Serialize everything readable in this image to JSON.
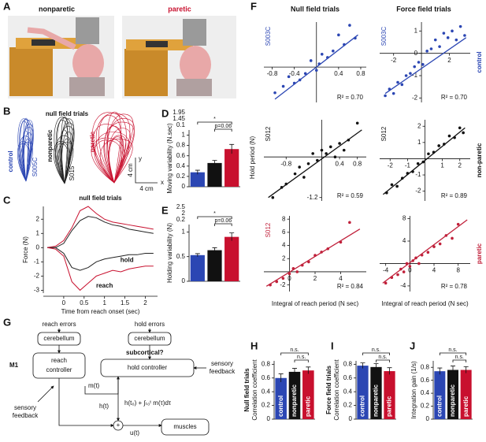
{
  "panel_labels": [
    "A",
    "B",
    "C",
    "D",
    "E",
    "F",
    "G",
    "H",
    "I",
    "J"
  ],
  "photos": {
    "left": "nonparetic",
    "right": "paretic"
  },
  "traces": {
    "title": "null field trials",
    "control": "control",
    "control_subject": "S005C",
    "nonparetic": "nonparetic",
    "nonparetic_subject": "S015",
    "paretic": "paretic",
    "scale_y": "4 cm",
    "scale_x": "4 cm",
    "y": "y",
    "x": "x"
  },
  "diagram": {
    "reach_errors": "reach errors",
    "hold_errors": "hold errors",
    "cerebellum_left": "cerebellum",
    "cerebellum_right": "cerebellum",
    "m1": "M1",
    "reach_controller": [
      "reach",
      "controller"
    ],
    "subcortical": "subcortical?",
    "hold_controller": "hold controller",
    "feedback_right": [
      "sensory",
      "feedback"
    ],
    "feedback_left": [
      "sensory",
      "feedback"
    ],
    "m": "m(t)",
    "h": "h(t)",
    "formula": "h(t₀) + ∫ₜ₀ᵗ m(τ)dτ",
    "sum": "+",
    "u": "u(t)",
    "muscles": "muscles"
  },
  "f_titles": [
    "Null field trials",
    "Force field trials"
  ],
  "f_ylabel": "Hold period (N)",
  "chart_data": [
    {
      "type": "line",
      "title": "null field trials",
      "ylabel": "Force (N)",
      "xlabel": "Time from reach onset (sec)",
      "annotations": [
        "reach",
        "hold"
      ],
      "x": [
        -0.4,
        -0.2,
        0,
        0.2,
        0.4,
        0.6,
        0.8,
        1,
        1.2,
        1.4,
        1.6,
        1.8,
        2,
        2.2
      ],
      "series": [
        {
          "color": "#222222",
          "values": [
            0,
            0,
            0.3,
            1.2,
            1.9,
            2.2,
            2.1,
            1.8,
            1.6,
            1.5,
            1.3,
            1.2,
            1.1,
            1.0
          ]
        },
        {
          "color": "#c8102e",
          "values": [
            0,
            0.1,
            0.5,
            1.4,
            2.6,
            2.9,
            2.4,
            2.0,
            1.8,
            1.7,
            1.6,
            1.5,
            1.4,
            1.3
          ]
        },
        {
          "color": "#222222",
          "values": [
            0,
            0,
            -0.4,
            -1.4,
            -1.6,
            -1.4,
            -1.0,
            -0.8,
            -0.7,
            -0.6,
            -0.5,
            -0.5,
            -0.4,
            -0.4
          ]
        },
        {
          "color": "#c8102e",
          "values": [
            0,
            -0.1,
            -0.6,
            -2.4,
            -3.0,
            -2.5,
            -2.0,
            -1.8,
            -1.6,
            -1.7,
            -1.5,
            -1.4,
            -1.3,
            -1.3
          ]
        }
      ],
      "xlim": [
        -0.5,
        2.3
      ],
      "ylim": [
        -3.2,
        2.9
      ],
      "xticks": [
        0,
        0.5,
        1,
        1.5,
        2
      ],
      "yticks": [
        2,
        1,
        0,
        -1,
        -2,
        -3
      ]
    },
    {
      "type": "bar",
      "ylabel": "Moving variability (N.sec)",
      "values": [
        0.28,
        0.46,
        0.73
      ],
      "errors": [
        0.04,
        0.05,
        0.09
      ],
      "colors": [
        "#2b46b3",
        "#111111",
        "#c8102e"
      ],
      "ylim": [
        0,
        1.1
      ],
      "yticks": [
        0,
        0.2,
        0.4,
        0.6,
        0.8,
        1
      ],
      "break_labels": [
        "1.95",
        "1.45",
        "0.1"
      ],
      "annotations": [
        "*",
        "p=0.06"
      ]
    },
    {
      "type": "bar",
      "ylabel": "Holding variability (N)",
      "values": [
        0.53,
        0.63,
        0.9
      ],
      "errors": [
        0.03,
        0.05,
        0.08
      ],
      "colors": [
        "#2b46b3",
        "#111111",
        "#c8102e"
      ],
      "ylim": [
        0,
        1.15
      ],
      "yticks": [
        0,
        0.5,
        1
      ],
      "break_labels": [
        "2.5",
        "2",
        "0.2"
      ],
      "annotations": [
        "*",
        "p=0.06"
      ]
    },
    {
      "type": "bar",
      "title": "Null field trials",
      "ylabel": "Correlation coefficient",
      "categories": [
        "control",
        "nonparetic",
        "paretic"
      ],
      "values": [
        0.6,
        0.69,
        0.71
      ],
      "errors": [
        0.06,
        0.05,
        0.05
      ],
      "colors": [
        "#2b46b3",
        "#111111",
        "#c8102e"
      ],
      "ylim": [
        0,
        0.85
      ],
      "yticks": [
        0,
        0.2,
        0.4,
        0.6,
        0.8
      ],
      "annotations": [
        "n.s.",
        "n.s."
      ]
    },
    {
      "type": "bar",
      "title": "Force field trials",
      "ylabel": "Correlation coefficient",
      "categories": [
        "control",
        "nonparetic",
        "paretic"
      ],
      "values": [
        0.78,
        0.76,
        0.7
      ],
      "errors": [
        0.04,
        0.05,
        0.05
      ],
      "colors": [
        "#2b46b3",
        "#111111",
        "#c8102e"
      ],
      "ylim": [
        0,
        0.85
      ],
      "yticks": [
        0,
        0.2,
        0.4,
        0.6,
        0.8
      ],
      "annotations": [
        "n.s.",
        "n.s."
      ]
    },
    {
      "type": "bar",
      "ylabel": "Integration gain (1/s)",
      "categories": [
        "control",
        "nonparetic",
        "paretic"
      ],
      "values": [
        0.74,
        0.76,
        0.76
      ],
      "errors": [
        0.05,
        0.06,
        0.05
      ],
      "colors": [
        "#2b46b3",
        "#111111",
        "#c8102e"
      ],
      "ylim": [
        0,
        0.9
      ],
      "yticks": [
        0,
        0.2,
        0.4,
        0.6,
        0.8
      ],
      "annotations": [
        "n.s.",
        "n.s."
      ]
    },
    {
      "type": "scatter",
      "label": "S003C",
      "color": "#2b46b3",
      "r2": "R² = 0.70",
      "x": [
        -0.75,
        -0.6,
        -0.5,
        -0.4,
        -0.3,
        -0.2,
        -0.1,
        0,
        0.05,
        0.1,
        0.2,
        0.3,
        0.4,
        0.5,
        0.6,
        0.7
      ],
      "y": [
        -0.8,
        -0.6,
        -0.3,
        -0.5,
        -0.4,
        -0.2,
        0.2,
        -0.1,
        0.1,
        0.4,
        0.3,
        0.5,
        1.0,
        0.7,
        1.3,
        0.9
      ],
      "fit_x": [
        -0.75,
        0.75
      ],
      "fit_y": [
        -1.0,
        1.0
      ],
      "xlim": [
        -0.95,
        0.9
      ],
      "ylim": [
        -1.1,
        1.4
      ],
      "xticks": [
        -0.8,
        -0.4,
        0.4,
        0.8
      ],
      "yticks": []
    },
    {
      "type": "scatter",
      "label": "S003C",
      "side": "control",
      "color": "#2b46b3",
      "r2": "R² = 0.70",
      "x": [
        -2.6,
        -2.3,
        -2,
        -1.7,
        -1.4,
        -1.1,
        -0.8,
        -0.5,
        -0.2,
        0.1,
        0.4,
        0.7,
        1,
        1.3,
        1.6,
        1.9,
        2.2,
        2.5,
        2.8,
        3.1
      ],
      "y": [
        -1.9,
        -1.6,
        -1.8,
        -1.3,
        -1.4,
        -1.0,
        -0.9,
        -0.6,
        -0.4,
        -0.5,
        0.1,
        0.2,
        0.6,
        0.3,
        0.9,
        0.7,
        1.0,
        0.6,
        1.2,
        0.8
      ],
      "fit_x": [
        -2.6,
        3.2
      ],
      "fit_y": [
        -1.8,
        0.7
      ],
      "xlim": [
        -3,
        3.5
      ],
      "ylim": [
        -2.2,
        1.4
      ],
      "xticks": [
        -2,
        2
      ],
      "yticks": [
        1,
        0,
        -1,
        -2
      ]
    },
    {
      "type": "scatter",
      "label": "S012",
      "color": "#111111",
      "r2": "R² = 0.59",
      "x": [
        -1.1,
        -0.9,
        -0.8,
        -0.6,
        -0.5,
        -0.4,
        -0.3,
        -0.2,
        -0.1,
        0,
        0.1,
        0.2,
        0.3,
        0.4,
        0.5,
        0.6,
        0.8
      ],
      "y": [
        -1.2,
        -0.9,
        -0.8,
        -0.5,
        -0.3,
        -0.6,
        -0.2,
        0.1,
        -0.1,
        0.2,
        0.1,
        0.3,
        0,
        0.4,
        0.2,
        0.5,
        1.0
      ],
      "fit_x": [
        -1.2,
        0.9
      ],
      "fit_y": [
        -1.2,
        0.8
      ],
      "xlim": [
        -1.3,
        1
      ],
      "ylim": [
        -1.3,
        1.1
      ],
      "xticks": [
        -0.8,
        0.4,
        0.8
      ],
      "yticks": [
        -1.2
      ]
    },
    {
      "type": "scatter",
      "label": "S012",
      "side": "non-paretic",
      "color": "#111111",
      "r2": "R² = 0.89",
      "x": [
        -2.2,
        -1.9,
        -1.6,
        -1.3,
        -1,
        -0.7,
        -0.4,
        -0.1,
        0.2,
        0.5,
        0.8,
        1.1,
        1.4,
        1.7,
        2,
        2.2
      ],
      "y": [
        -2.1,
        -1.6,
        -1.7,
        -1.2,
        -0.9,
        -0.8,
        -0.3,
        -0.2,
        0.3,
        0.4,
        0.8,
        0.9,
        1.4,
        1.3,
        1.9,
        1.6
      ],
      "fit_x": [
        -2.4,
        2.3
      ],
      "fit_y": [
        -2.2,
        1.9
      ],
      "xlim": [
        -2.6,
        2.6
      ],
      "ylim": [
        -2.6,
        2.4
      ],
      "xticks": [
        -2,
        -1,
        1,
        2
      ],
      "yticks": [
        2,
        1,
        -1,
        -2
      ]
    },
    {
      "type": "scatter",
      "label": "S012",
      "color": "#c0203a",
      "r2": "R² = 0.84",
      "xlabel": "Integral of reach period (N sec)",
      "x": [
        -1.5,
        -1,
        -0.5,
        0,
        0.3,
        0.6,
        1,
        1.5,
        2,
        2.5,
        3,
        4,
        4.7
      ],
      "y": [
        -2,
        -1.5,
        -1,
        -0.3,
        0.5,
        0,
        1,
        1.5,
        2.5,
        3,
        3.5,
        4.5,
        7.5
      ],
      "fit_x": [
        -1.8,
        5.5
      ],
      "fit_y": [
        -2.2,
        6.5
      ],
      "xlim": [
        -2,
        6
      ],
      "ylim": [
        -3,
        8.5
      ],
      "xticks": [
        0,
        2,
        4
      ],
      "yticks": [
        8,
        6,
        4,
        2,
        -2
      ]
    },
    {
      "type": "scatter",
      "side": "paretic",
      "color": "#c0203a",
      "r2": "R² = 0.78",
      "xlabel": "Integral of reach period (N sec)",
      "x": [
        -4,
        -3,
        -2,
        -1.5,
        -1,
        -0.5,
        0,
        0.5,
        1,
        1.5,
        2,
        3,
        4,
        5,
        6,
        7,
        8
      ],
      "y": [
        -3.5,
        -2.5,
        -2,
        -1,
        -1.5,
        0,
        -0.5,
        0.5,
        1,
        0,
        1.5,
        2,
        3,
        3.5,
        5,
        4.5,
        7
      ],
      "fit_x": [
        -4.5,
        9.5
      ],
      "fit_y": [
        -3.5,
        7.8
      ],
      "xlim": [
        -5,
        10
      ],
      "ylim": [
        -5,
        8.5
      ],
      "xticks": [
        -4,
        0,
        4,
        8
      ],
      "yticks": [
        8,
        4,
        -4
      ]
    }
  ]
}
